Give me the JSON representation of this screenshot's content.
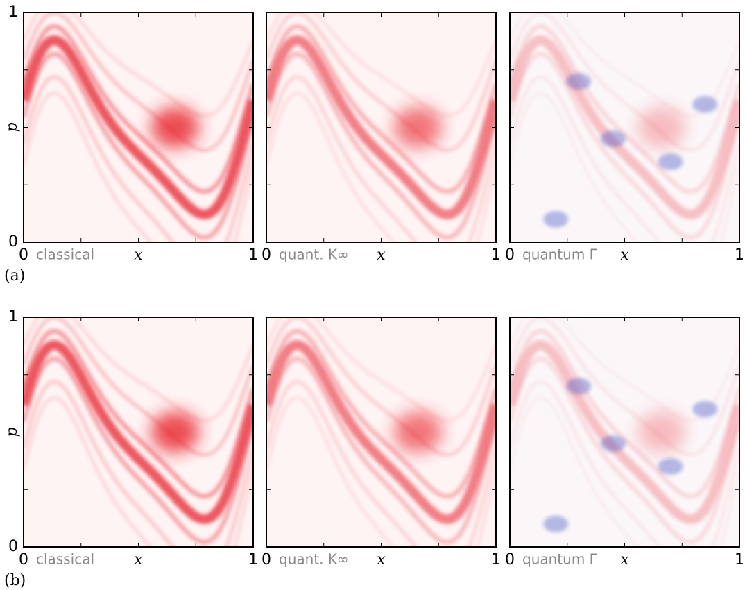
{
  "chart_data": [
    {
      "type": "heatmap",
      "panel": "(a)",
      "label": "classical",
      "xlabel": "x",
      "ylabel": "p",
      "xlim": [
        0,
        1
      ],
      "ylim": [
        0,
        1
      ],
      "xticks": [
        0,
        1
      ],
      "yticks": [
        0,
        1
      ],
      "xminorticks": [
        0.25,
        0.5,
        0.75
      ],
      "yminorticks": [
        0.25,
        0.5,
        0.75
      ],
      "colormap": "bwr"
    },
    {
      "type": "heatmap",
      "label": "quant. K∞",
      "xlabel": "x",
      "xlim": [
        0,
        1
      ],
      "ylim": [
        0,
        1
      ],
      "xticks": [
        0,
        1
      ],
      "xminorticks": [
        0.25,
        0.5,
        0.75
      ],
      "yminorticks": [
        0.25,
        0.5,
        0.75
      ],
      "colormap": "bwr"
    },
    {
      "type": "heatmap",
      "label": "quantum Γ",
      "xlabel": "x",
      "xlim": [
        0,
        1
      ],
      "ylim": [
        0,
        1
      ],
      "xticks": [
        0,
        1
      ],
      "xminorticks": [
        0.25,
        0.5,
        0.75
      ],
      "yminorticks": [
        0.25,
        0.5,
        0.75
      ],
      "colormap": "bwr"
    },
    {
      "type": "heatmap",
      "panel": "(b)",
      "label": "classical",
      "xlabel": "x",
      "ylabel": "p",
      "xlim": [
        0,
        1
      ],
      "ylim": [
        0,
        1
      ],
      "xticks": [
        0,
        1
      ],
      "yticks": [
        0,
        1
      ],
      "xminorticks": [
        0.25,
        0.5,
        0.75
      ],
      "yminorticks": [
        0.25,
        0.5,
        0.75
      ],
      "colormap": "bwr"
    },
    {
      "type": "heatmap",
      "label": "quant. K∞",
      "xlabel": "x",
      "xlim": [
        0,
        1
      ],
      "ylim": [
        0,
        1
      ],
      "xticks": [
        0,
        1
      ],
      "xminorticks": [
        0.25,
        0.5,
        0.75
      ],
      "yminorticks": [
        0.25,
        0.5,
        0.75
      ],
      "colormap": "bwr"
    },
    {
      "type": "heatmap",
      "label": "quantum Γ",
      "xlabel": "x",
      "xlim": [
        0,
        1
      ],
      "ylim": [
        0,
        1
      ],
      "xticks": [
        0,
        1
      ],
      "xminorticks": [
        0.25,
        0.5,
        0.75
      ],
      "yminorticks": [
        0.25,
        0.5,
        0.75
      ],
      "colormap": "bwr"
    }
  ]
}
